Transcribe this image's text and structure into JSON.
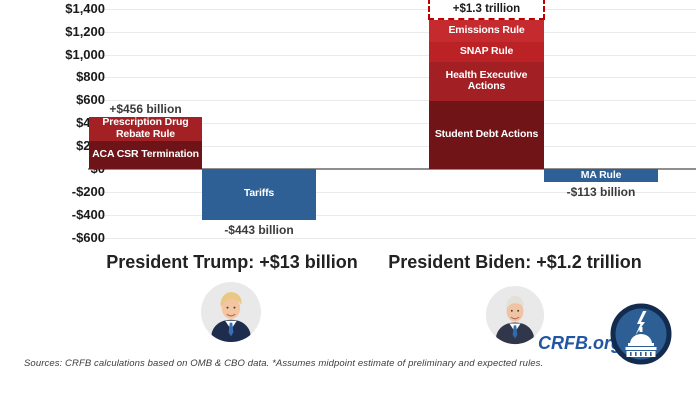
{
  "page": {
    "background": "#FFFFFF"
  },
  "branding": {
    "site_label": "CRFB.org",
    "site_color": "#2156A3",
    "logo": "crfb-capitol-logo",
    "logo_ring_color": "#122B4E",
    "logo_fill_color": "#2E5F94"
  },
  "footer": {
    "trump_summary": "President Trump: +$13 billion",
    "biden_summary": "President Biden: +$1.2 trillion"
  },
  "source_note": "Sources: CRFB calculations based on OMB & CBO data. *Assumes midpoint estimate of preliminary and expected rules.",
  "chart_data": {
    "type": "bar",
    "subtype": "stacked columns with positive and negative bars",
    "unit": "billions of dollars",
    "title": "",
    "xlabel": "",
    "ylabel": "",
    "ylim": [
      -600,
      1400
    ],
    "ytick_interval": 200,
    "grid": true,
    "yticks": [
      {
        "value": 1400,
        "label": "$1,400"
      },
      {
        "value": 1200,
        "label": "$1,200"
      },
      {
        "value": 1000,
        "label": "$1,000"
      },
      {
        "value": 800,
        "label": "$800"
      },
      {
        "value": 600,
        "label": "$600"
      },
      {
        "value": 400,
        "label": "$400"
      },
      {
        "value": 200,
        "label": "$200"
      },
      {
        "value": 0,
        "label": "$0"
      },
      {
        "value": -200,
        "label": "-$200"
      },
      {
        "value": -400,
        "label": "-$400"
      },
      {
        "value": -600,
        "label": "-$600"
      }
    ],
    "columns": [
      {
        "id": "trump-increases",
        "group": "President Trump",
        "direction": "positive",
        "total": 456,
        "total_label": "+$456 billion",
        "total_label_style": "text-above",
        "segments": [
          {
            "label": "Prescription Drug Rebate Rule",
            "value": 215,
            "estimated": true,
            "color": "#A32125"
          },
          {
            "label": "ACA CSR Termination",
            "value": 241,
            "estimated": true,
            "color": "#6E1419"
          }
        ]
      },
      {
        "id": "tariffs",
        "group": "President Trump",
        "direction": "negative",
        "total": -443,
        "total_label": "-$443 billion",
        "total_label_style": "text-below",
        "segments": [
          {
            "label": "Tariffs",
            "value": -443,
            "color": "#2E6096"
          }
        ]
      },
      {
        "id": "biden-increases",
        "group": "President Biden",
        "direction": "positive",
        "total": 1300,
        "total_label": "+$1.3 trillion",
        "total_label_style": "dashed-box",
        "segments": [
          {
            "label": "Emissions Rule",
            "value": 195,
            "estimated": true,
            "color": "#C42A2E"
          },
          {
            "label": "SNAP Rule",
            "value": 170,
            "estimated": true,
            "color": "#BB2226"
          },
          {
            "label": "Health Executive Actions",
            "value": 340,
            "estimated": true,
            "color": "#A21F24"
          },
          {
            "label": "Student Debt Actions",
            "value": 595,
            "estimated": true,
            "color": "#701418"
          }
        ]
      },
      {
        "id": "ma-rule",
        "group": "President Biden",
        "direction": "negative",
        "total": -113,
        "total_label": "-$113 billion",
        "total_label_style": "text-below",
        "segments": [
          {
            "label": "MA Rule",
            "value": -113,
            "color": "#2E6096"
          }
        ]
      }
    ]
  }
}
